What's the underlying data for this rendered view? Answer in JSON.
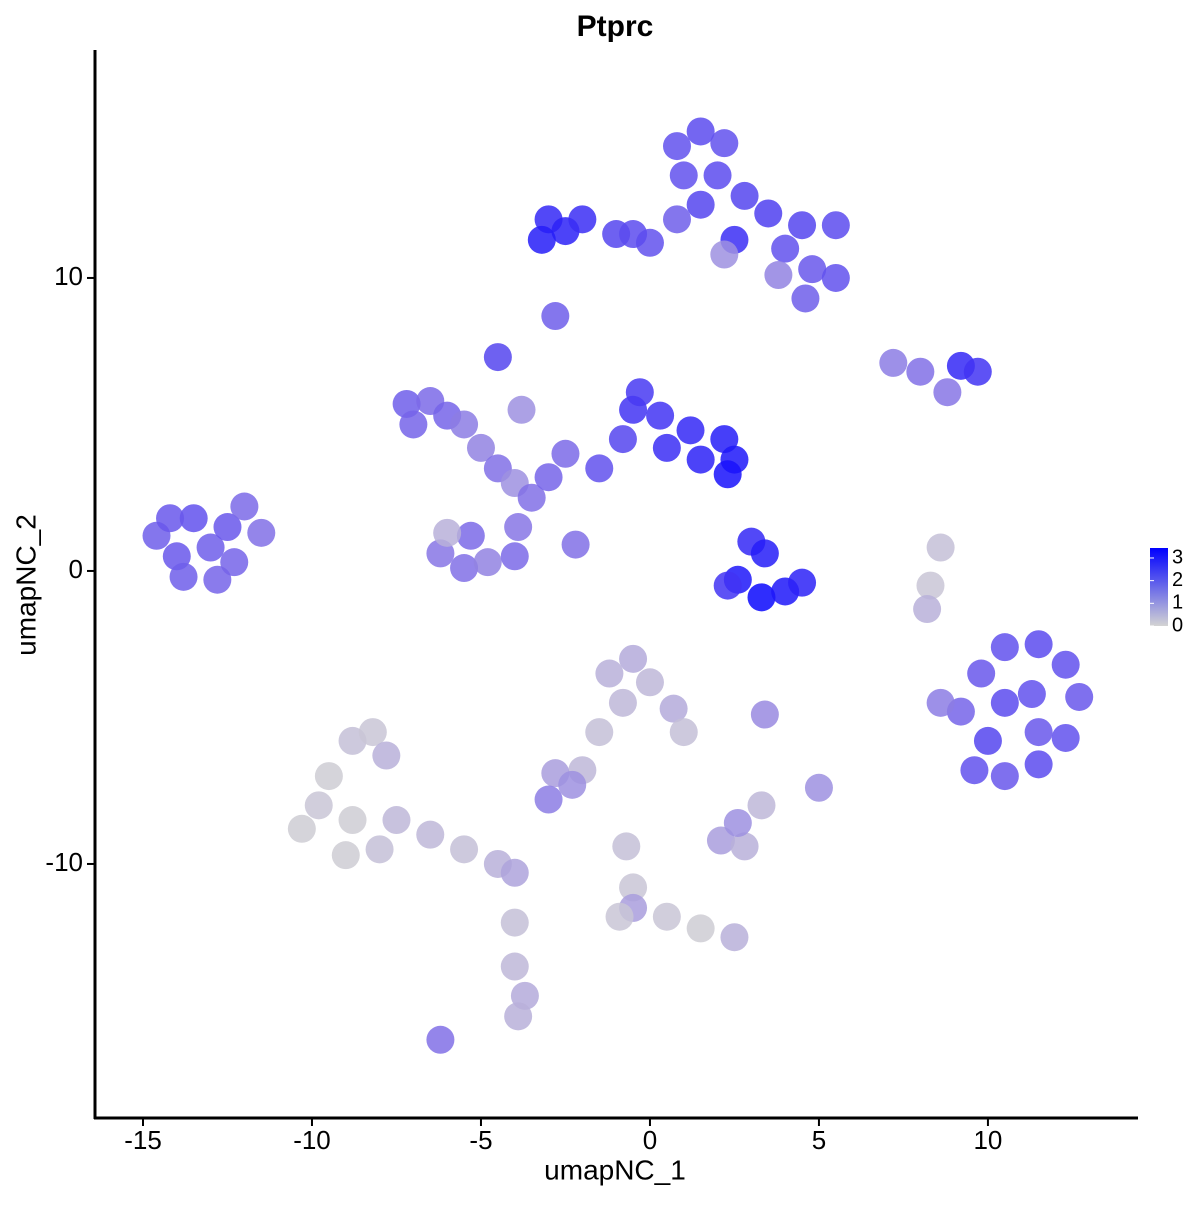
{
  "chart_data": {
    "type": "scatter",
    "title": "Ptprc",
    "x_label": "umapNC_1",
    "y_label": "umapNC_2",
    "xlim": [
      -16.42,
      14.44
    ],
    "ylim": [
      -18.67,
      17.78
    ],
    "xticks": [
      -15,
      -10,
      -5,
      0,
      5,
      10
    ],
    "yticks": [
      -10,
      0,
      10
    ],
    "color_low": "#d3d3d3",
    "color_high": "#0000ff",
    "colorlim": [
      0,
      3.44
    ],
    "colorticks": [
      0,
      1,
      2,
      3
    ],
    "x": [
      -14.6,
      -14,
      -13.5,
      -13,
      -12.5,
      -12.3,
      -13.8,
      -12,
      -11.5,
      -12.8,
      -14.2,
      0.8,
      1.5,
      2.2,
      1,
      2,
      1.5,
      0.8,
      2.8,
      3.5,
      4.5,
      5.5,
      4,
      4.8,
      5.5,
      4.6,
      -3,
      -2.5,
      -2,
      -3.2,
      -1,
      0,
      -0.5,
      2.5,
      3.8,
      2.2,
      -2.8,
      -7.2,
      -7,
      -6.5,
      -6,
      -5.5,
      -5,
      -4.5,
      -4,
      -3.5,
      -3,
      -2.5,
      -1.5,
      -0.8,
      -0.5,
      -0.3,
      0.3,
      0.5,
      1.2,
      1.5,
      2.2,
      2.5,
      2.3,
      -4.5,
      -3.8,
      -5.3,
      -6.2,
      -5.5,
      -4.8,
      -4,
      -3.9,
      -6,
      -2.2,
      3,
      3.4,
      2.6,
      3.3,
      4,
      4.5,
      2.3,
      9.2,
      9.8,
      10.5,
      11.5,
      12.3,
      12.7,
      12.3,
      11.5,
      10.5,
      9.6,
      10.5,
      11.3,
      10,
      11.5,
      8.6,
      9.2,
      9.7,
      8,
      7.2,
      8.8,
      8.6,
      8.3,
      8.2,
      -10.3,
      -9.8,
      -9.5,
      -8.8,
      -8.2,
      -7.8,
      -9,
      -8,
      -7.5,
      -8.8,
      -6.5,
      -5.5,
      -4.5,
      -4,
      -4,
      -4,
      -3.7,
      -3.9,
      -6.2,
      -1.2,
      -0.5,
      0,
      0.7,
      1,
      -0.8,
      -1.5,
      -2,
      -2.8,
      -2.3,
      -3,
      -0.7,
      -0.5,
      -0.5,
      0.5,
      1.5,
      2.5,
      2.1,
      2.8,
      2.6,
      3.3,
      5,
      3.4,
      -0.9
    ],
    "y": [
      1.2,
      0.5,
      1.8,
      0.8,
      1.5,
      0.3,
      -0.2,
      2.2,
      1.3,
      -0.3,
      1.8,
      14.5,
      15,
      14.6,
      13.5,
      13.5,
      12.5,
      12,
      12.8,
      12.2,
      11.8,
      11.8,
      11,
      10.3,
      10,
      9.3,
      12,
      11.6,
      12,
      11.3,
      11.5,
      11.2,
      11.5,
      11.3,
      10.1,
      10.8,
      8.7,
      5.7,
      5,
      5.8,
      5.3,
      5,
      4.2,
      3.5,
      3,
      2.5,
      3.2,
      4,
      3.5,
      4.5,
      5.5,
      6.1,
      5.3,
      4.2,
      4.8,
      3.8,
      4.5,
      3.8,
      3.3,
      7.3,
      5.5,
      1.2,
      0.6,
      0.1,
      0.3,
      0.5,
      1.5,
      1.3,
      0.9,
      1,
      0.6,
      -0.3,
      -0.9,
      -0.7,
      -0.4,
      -0.5,
      -4.8,
      -3.5,
      -2.6,
      -2.5,
      -3.2,
      -4.3,
      -5.7,
      -6.6,
      -7,
      -6.8,
      -4.5,
      -4.2,
      -5.8,
      -5.5,
      -4.5,
      7,
      6.8,
      6.8,
      7.1,
      6.1,
      0.8,
      -0.5,
      -1.3,
      -8.8,
      -8,
      -7,
      -5.8,
      -5.5,
      -6.3,
      -9.7,
      -9.5,
      -8.5,
      -8.5,
      -9,
      -9.5,
      -10,
      -10.3,
      -12,
      -13.5,
      -14.5,
      -15.2,
      -16,
      -3.5,
      -3,
      -3.8,
      -4.7,
      -5.5,
      -4.5,
      -5.5,
      -6.8,
      -6.9,
      -7.3,
      -7.8,
      -9.4,
      -10.8,
      -11.5,
      -11.8,
      -12.2,
      -12.5,
      -9.2,
      -9.4,
      -8.6,
      -8,
      -7.4,
      -4.9,
      -11.8
    ],
    "expression": [
      1.8,
      1.9,
      2,
      1.8,
      1.9,
      1.7,
      1.8,
      1.6,
      1.5,
      1.7,
      1.9,
      2,
      2.1,
      2,
      2,
      2.1,
      2.2,
      1.8,
      2.2,
      2.3,
      2.2,
      2.1,
      2,
      1.9,
      2,
      1.8,
      2.7,
      2.8,
      2.6,
      2.9,
      2.2,
      2,
      2.1,
      2.6,
      1.2,
      1,
      1.8,
      1.8,
      1.7,
      1.6,
      1.7,
      1.3,
      1.2,
      1.5,
      1,
      1.5,
      1.7,
      1.6,
      2,
      2.2,
      2.5,
      2.4,
      2.5,
      2.6,
      2.7,
      2.8,
      2.9,
      3,
      3.1,
      2.2,
      1,
      1.6,
      1.4,
      1.5,
      1.2,
      1.6,
      1.4,
      0.5,
      1.5,
      2.7,
      2.9,
      3,
      3.3,
      3,
      2.8,
      2.5,
      1.7,
      1.9,
      2,
      2.1,
      2,
      1.9,
      2,
      2.1,
      1.9,
      2,
      2.1,
      2,
      2.2,
      1.9,
      1.3,
      2.7,
      2.5,
      1.5,
      1.3,
      1.4,
      0.3,
      0.2,
      0.5,
      0.1,
      0.2,
      0.1,
      0.3,
      0.2,
      0.5,
      0.1,
      0.3,
      0.4,
      0.1,
      0.4,
      0.3,
      0.5,
      0.7,
      0.3,
      0.4,
      0.6,
      0.5,
      1.5,
      0.5,
      0.6,
      0.4,
      0.6,
      0.3,
      0.4,
      0.3,
      0.4,
      0.8,
      1,
      1.3,
      0.3,
      0.2,
      0.8,
      0.2,
      0.1,
      0.5,
      0.8,
      0.5,
      1,
      0.4,
      1,
      1.1,
      0.2
    ]
  }
}
